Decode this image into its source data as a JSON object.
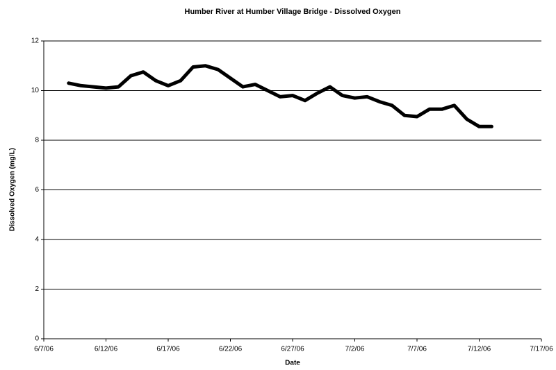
{
  "chart_data": {
    "type": "line",
    "title": "Humber River at Humber Village Bridge - Dissolved Oxygen",
    "x_label": "Date",
    "y_label": "Dissolved Oxygen (mg/L)",
    "x": [
      "2006-06-09",
      "2006-06-10",
      "2006-06-11",
      "2006-06-12",
      "2006-06-13",
      "2006-06-14",
      "2006-06-15",
      "2006-06-16",
      "2006-06-17",
      "2006-06-18",
      "2006-06-19",
      "2006-06-20",
      "2006-06-21",
      "2006-06-22",
      "2006-06-23",
      "2006-06-24",
      "2006-06-25",
      "2006-06-26",
      "2006-06-27",
      "2006-06-28",
      "2006-06-29",
      "2006-06-30",
      "2006-07-01",
      "2006-07-02",
      "2006-07-03",
      "2006-07-04",
      "2006-07-05",
      "2006-07-06",
      "2006-07-07",
      "2006-07-08",
      "2006-07-09",
      "2006-07-10",
      "2006-07-11",
      "2006-07-12",
      "2006-07-13"
    ],
    "values": [
      10.3,
      10.2,
      10.15,
      10.1,
      10.15,
      10.6,
      10.75,
      10.4,
      10.2,
      10.4,
      10.95,
      11.0,
      10.85,
      10.5,
      10.15,
      10.25,
      10.0,
      9.75,
      9.8,
      9.6,
      9.9,
      10.15,
      9.8,
      9.7,
      9.75,
      9.55,
      9.4,
      9.0,
      8.95,
      9.25,
      9.25,
      9.4,
      8.85,
      8.55,
      8.55
    ],
    "color": "#000000",
    "xlim": [
      "2006-06-07",
      "2006-07-17"
    ],
    "xticks": [
      {
        "value": "2006-06-07",
        "label": "6/7/06"
      },
      {
        "value": "2006-06-12",
        "label": "6/12/06"
      },
      {
        "value": "2006-06-17",
        "label": "6/17/06"
      },
      {
        "value": "2006-06-22",
        "label": "6/22/06"
      },
      {
        "value": "2006-06-27",
        "label": "6/27/06"
      },
      {
        "value": "2006-07-02",
        "label": "7/2/06"
      },
      {
        "value": "2006-07-07",
        "label": "7/7/06"
      },
      {
        "value": "2006-07-12",
        "label": "7/12/06"
      },
      {
        "value": "2006-07-17",
        "label": "7/17/06"
      }
    ],
    "ylim": [
      0,
      12
    ],
    "yticks": [
      0,
      2,
      4,
      6,
      8,
      10,
      12
    ],
    "grid": true
  }
}
